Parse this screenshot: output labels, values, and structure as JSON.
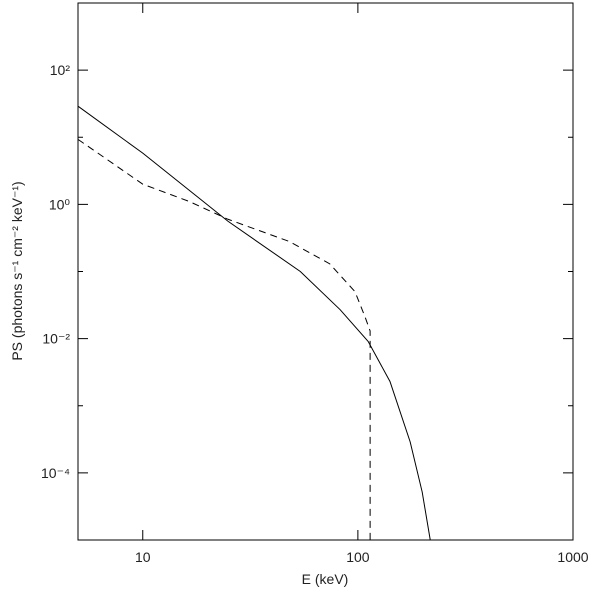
{
  "chart_data": {
    "type": "line",
    "x_label": "E (keV)",
    "y_label": "PS (photons s⁻¹ cm⁻² keV⁻¹)",
    "xlog": true,
    "ylog": true,
    "xlim": [
      5,
      1000
    ],
    "ylim": [
      1e-05,
      1000
    ],
    "xticks": [
      10,
      100,
      1000
    ],
    "yticks": [
      {
        "value": 0.0001,
        "label": "10⁻⁴"
      },
      {
        "value": 0.01,
        "label": "10⁻²"
      },
      {
        "value": 1,
        "label": "10⁰"
      },
      {
        "value": 100,
        "label": "10²"
      }
    ],
    "yminorticks": [
      0.001,
      0.1,
      10
    ],
    "series": [
      {
        "color": "#000000",
        "dash": false,
        "x": [
          5,
          10,
          24.9,
          54,
          82.7,
          111.6,
          141,
          175,
          199,
          217
        ],
        "values": [
          29,
          5.8,
          0.56,
          0.1,
          0.027,
          0.0091,
          0.0023,
          0.00029,
          5.2e-05,
          1e-05
        ]
      },
      {
        "color": "#000000",
        "dash": true,
        "x": [
          5,
          10,
          16.5,
          24.9,
          48,
          74,
          97,
          108,
          114,
          114
        ],
        "values": [
          9.3,
          2.0,
          1.1,
          0.6,
          0.28,
          0.13,
          0.05,
          0.021,
          0.013,
          1e-05
        ]
      }
    ]
  }
}
